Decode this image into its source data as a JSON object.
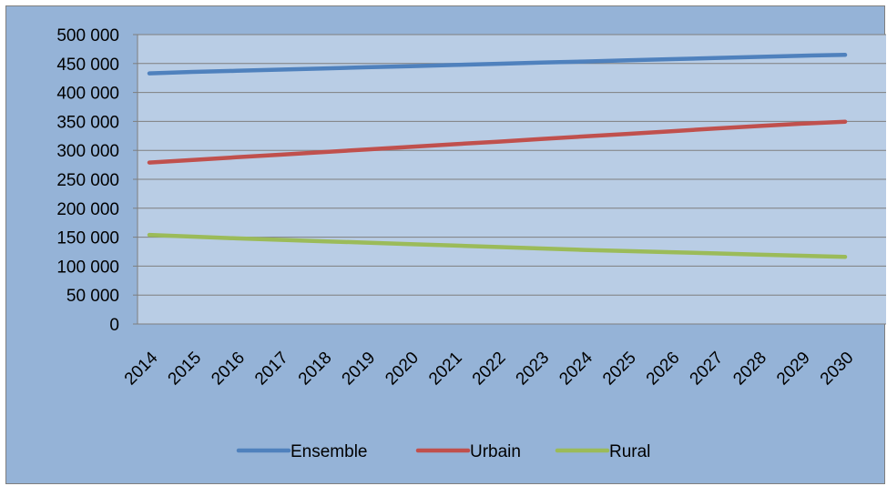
{
  "chart_data": {
    "type": "line",
    "title": "",
    "xlabel": "",
    "ylabel": "",
    "categories": [
      "2014",
      "2015",
      "2016",
      "2017",
      "2018",
      "2019",
      "2020",
      "2021",
      "2022",
      "2023",
      "2024",
      "2025",
      "2026",
      "2027",
      "2028",
      "2029",
      "2030"
    ],
    "ylim": [
      0,
      500000
    ],
    "yticks": [
      0,
      50000,
      100000,
      150000,
      200000,
      250000,
      300000,
      350000,
      400000,
      450000,
      500000
    ],
    "ytick_labels": [
      "0",
      "50 000",
      "100 000",
      "150 000",
      "200 000",
      "250 000",
      "300 000",
      "350 000",
      "400 000",
      "450 000",
      "500 000"
    ],
    "grid": true,
    "legend_position": "bottom",
    "series": [
      {
        "name": "Ensemble",
        "color": "#4f81bd",
        "values": [
          433000,
          435500,
          437500,
          439500,
          441500,
          443500,
          445500,
          447500,
          449500,
          451500,
          453500,
          455500,
          457500,
          459500,
          461500,
          463500,
          465000
        ]
      },
      {
        "name": "Urbain",
        "color": "#c0504d",
        "values": [
          279000,
          283500,
          288000,
          292500,
          297000,
          301500,
          306000,
          310500,
          315000,
          319500,
          324000,
          328500,
          333000,
          337500,
          342000,
          346000,
          349500
        ]
      },
      {
        "name": "Rural",
        "color": "#9bbb59",
        "values": [
          154000,
          151000,
          148000,
          145500,
          143000,
          140500,
          138000,
          135500,
          133000,
          130500,
          128000,
          126000,
          124000,
          122000,
          120000,
          118000,
          116000
        ]
      }
    ],
    "colors": {
      "background": "#95b3d7",
      "plot_area": "#b9cde5",
      "gridline": "#7f7f7f"
    }
  }
}
